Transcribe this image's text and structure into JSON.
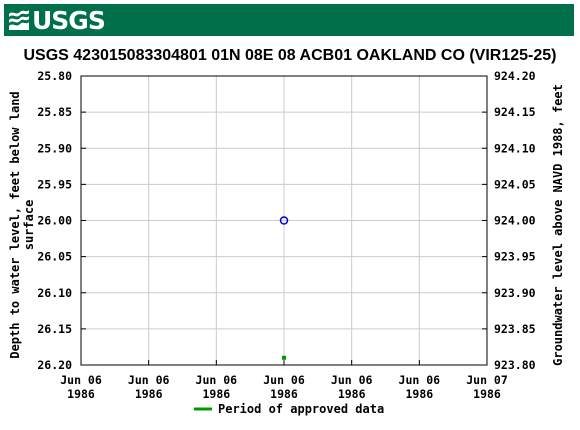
{
  "header": {
    "brand": "USGS"
  },
  "colors": {
    "banner": "#00704a",
    "grid": "#cccccc",
    "point": "#0000cc",
    "approved": "#009900"
  },
  "chart_data": {
    "type": "scatter",
    "title": "USGS 423015083304801 01N 08E 08 ACB01 OAKLAND CO (VIR125-25)",
    "ylabel_left": [
      "Depth to water level, feet below land",
      "surface"
    ],
    "ylabel_right": "Groundwater level above NAVD 1988, feet",
    "y_left_ticks": [
      "25.80",
      "25.85",
      "25.90",
      "25.95",
      "26.00",
      "26.05",
      "26.10",
      "26.15",
      "26.20"
    ],
    "y_right_ticks": [
      "924.20",
      "924.15",
      "924.10",
      "924.05",
      "924.00",
      "923.95",
      "923.90",
      "923.85",
      "923.80"
    ],
    "ylim_left": [
      25.8,
      26.2
    ],
    "ylim_right": [
      924.2,
      923.8
    ],
    "x_ticks": [
      [
        "Jun 06",
        "1986"
      ],
      [
        "Jun 06",
        "1986"
      ],
      [
        "Jun 06",
        "1986"
      ],
      [
        "Jun 06",
        "1986"
      ],
      [
        "Jun 06",
        "1986"
      ],
      [
        "Jun 06",
        "1986"
      ],
      [
        "Jun 07",
        "1986"
      ]
    ],
    "xlim": [
      0,
      6
    ],
    "points": [
      {
        "x": 3,
        "y": 26.0
      }
    ],
    "approved_period": [
      {
        "x": 3,
        "y": 26.19
      }
    ],
    "legend": {
      "label": "Period of approved data",
      "position": "bottom-center"
    },
    "grid": true
  }
}
